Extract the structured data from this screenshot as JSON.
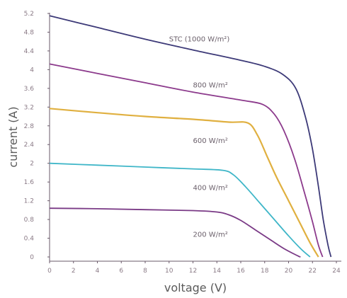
{
  "chart_data": {
    "type": "line",
    "title": "",
    "xlabel": "voltage (V)",
    "ylabel": "current (A)",
    "xlim": [
      0,
      24
    ],
    "ylim": [
      0,
      5.2
    ],
    "x_ticks": [
      "0",
      "2",
      "4",
      "6",
      "8",
      "10",
      "12",
      "14",
      "16",
      "18",
      "20",
      "22",
      "24"
    ],
    "y_ticks": [
      "0",
      "0.4",
      "0.8",
      "1.2",
      "1.6",
      "2",
      "2.4",
      "2.8",
      "3.2",
      "3.6",
      "4",
      "4.4",
      "4.8",
      "5.2"
    ],
    "grid": false,
    "series": [
      {
        "name": "STC (1000 W/m²)",
        "color": "#3d3a78",
        "points": [
          [
            0,
            5.15
          ],
          [
            4,
            4.9
          ],
          [
            8,
            4.65
          ],
          [
            12,
            4.42
          ],
          [
            16,
            4.2
          ],
          [
            18,
            4.07
          ],
          [
            19.5,
            3.9
          ],
          [
            20.6,
            3.6
          ],
          [
            21.4,
            3.0
          ],
          [
            22.0,
            2.3
          ],
          [
            22.5,
            1.5
          ],
          [
            22.9,
            0.8
          ],
          [
            23.3,
            0.25
          ],
          [
            23.55,
            0.0
          ]
        ]
      },
      {
        "name": "800 W/m²",
        "color": "#8c3a8c",
        "points": [
          [
            0,
            4.12
          ],
          [
            4,
            3.92
          ],
          [
            8,
            3.72
          ],
          [
            12,
            3.52
          ],
          [
            16,
            3.35
          ],
          [
            17.8,
            3.26
          ],
          [
            18.8,
            3.05
          ],
          [
            19.6,
            2.7
          ],
          [
            20.5,
            2.1
          ],
          [
            21.3,
            1.4
          ],
          [
            22.0,
            0.75
          ],
          [
            22.5,
            0.25
          ],
          [
            22.85,
            0.0
          ]
        ]
      },
      {
        "name": "600 W/m²",
        "color": "#e0b040",
        "points": [
          [
            0,
            3.17
          ],
          [
            4,
            3.08
          ],
          [
            8,
            3.0
          ],
          [
            12,
            2.94
          ],
          [
            15,
            2.88
          ],
          [
            16.6,
            2.86
          ],
          [
            17.4,
            2.6
          ],
          [
            18.2,
            2.15
          ],
          [
            19.0,
            1.7
          ],
          [
            20.0,
            1.2
          ],
          [
            21.0,
            0.7
          ],
          [
            21.8,
            0.3
          ],
          [
            22.5,
            0.0
          ]
        ]
      },
      {
        "name": "400 W/m²",
        "color": "#3fb6c8",
        "points": [
          [
            0,
            2.0
          ],
          [
            4,
            1.96
          ],
          [
            8,
            1.92
          ],
          [
            12,
            1.88
          ],
          [
            14.5,
            1.85
          ],
          [
            15.4,
            1.75
          ],
          [
            16.4,
            1.5
          ],
          [
            17.6,
            1.15
          ],
          [
            18.8,
            0.8
          ],
          [
            20.0,
            0.45
          ],
          [
            21.0,
            0.18
          ],
          [
            21.8,
            0.0
          ]
        ]
      },
      {
        "name": "200 W/m²",
        "color": "#7a3a86",
        "points": [
          [
            0,
            1.04
          ],
          [
            4,
            1.03
          ],
          [
            8,
            1.01
          ],
          [
            12,
            0.99
          ],
          [
            14,
            0.96
          ],
          [
            15,
            0.9
          ],
          [
            16,
            0.78
          ],
          [
            17.2,
            0.58
          ],
          [
            18.4,
            0.38
          ],
          [
            19.6,
            0.18
          ],
          [
            20.8,
            0.02
          ],
          [
            21.0,
            0.0
          ]
        ]
      }
    ],
    "annotations": [
      {
        "text": "STC (1000 W/m²)",
        "x": 10,
        "y": 4.6
      },
      {
        "text": "800 W/m²",
        "x": 12,
        "y": 3.62
      },
      {
        "text": "600 W/m²",
        "x": 12,
        "y": 2.43
      },
      {
        "text": "400 W/m²",
        "x": 12,
        "y": 1.43
      },
      {
        "text": "200 W/m²",
        "x": 12,
        "y": 0.43
      }
    ]
  }
}
